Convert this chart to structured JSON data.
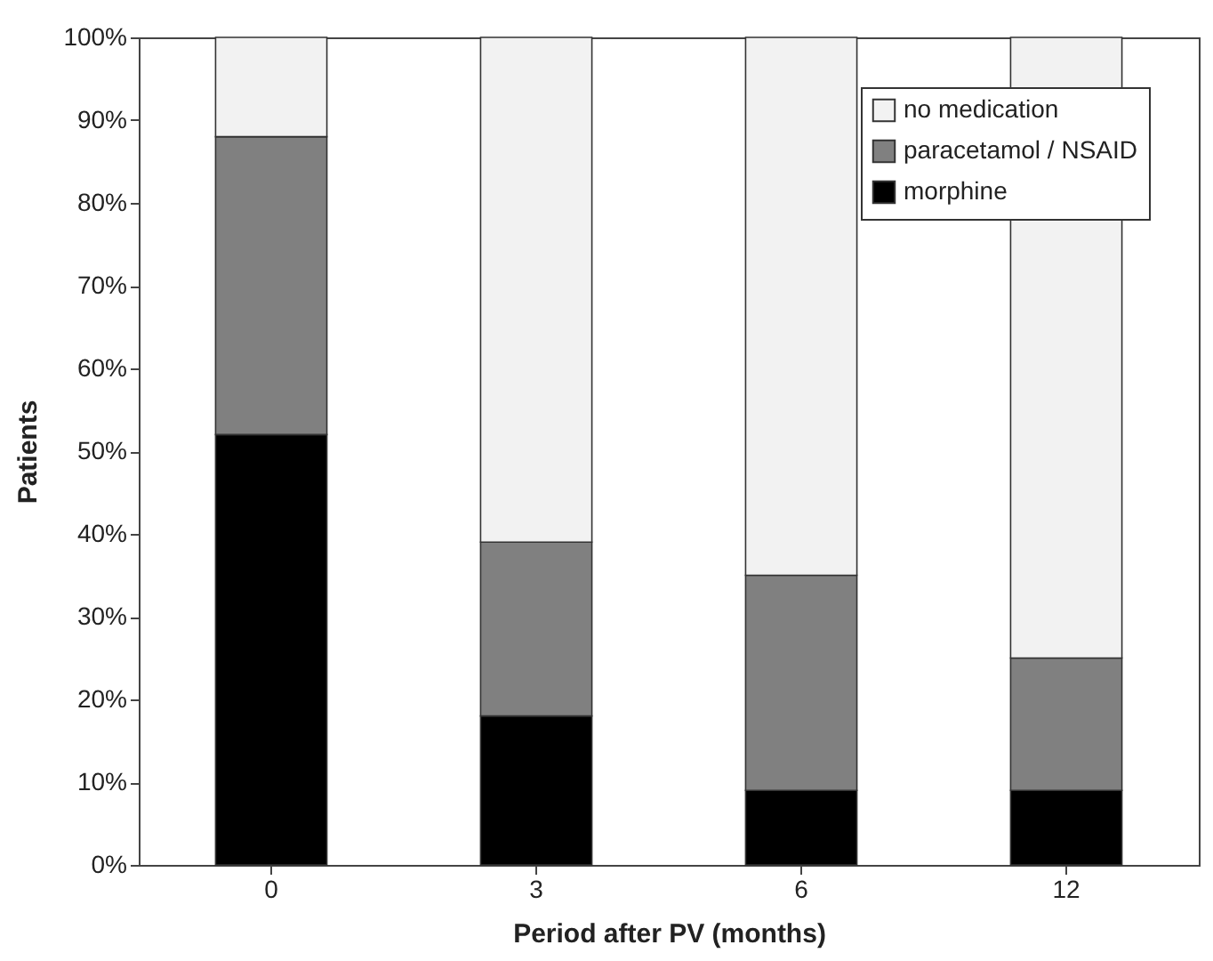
{
  "chart_data": {
    "type": "bar",
    "stacked": true,
    "xlabel": "Period after  PV (months)",
    "ylabel": "Patients",
    "categories": [
      "0",
      "3",
      "6",
      "12"
    ],
    "series": [
      {
        "name": "morphine",
        "color": "#000000",
        "values": [
          52,
          18,
          9,
          9
        ]
      },
      {
        "name": "paracetamol / NSAID",
        "color": "#808080",
        "values": [
          36,
          21,
          26,
          16
        ]
      },
      {
        "name": "no medication",
        "color": "#f2f2f2",
        "values": [
          12,
          61,
          65,
          75
        ]
      }
    ],
    "ylim": [
      0,
      100
    ],
    "yticks": [
      {
        "value": 0,
        "label": "0%"
      },
      {
        "value": 10,
        "label": "10%"
      },
      {
        "value": 20,
        "label": "20%"
      },
      {
        "value": 30,
        "label": "30%"
      },
      {
        "value": 40,
        "label": "40%"
      },
      {
        "value": 50,
        "label": "50%"
      },
      {
        "value": 60,
        "label": "60%"
      },
      {
        "value": 70,
        "label": "70%"
      },
      {
        "value": 80,
        "label": "80%"
      },
      {
        "value": 90,
        "label": "90%"
      },
      {
        "value": 100,
        "label": "100%"
      }
    ],
    "grid": false,
    "legend": "top right"
  }
}
